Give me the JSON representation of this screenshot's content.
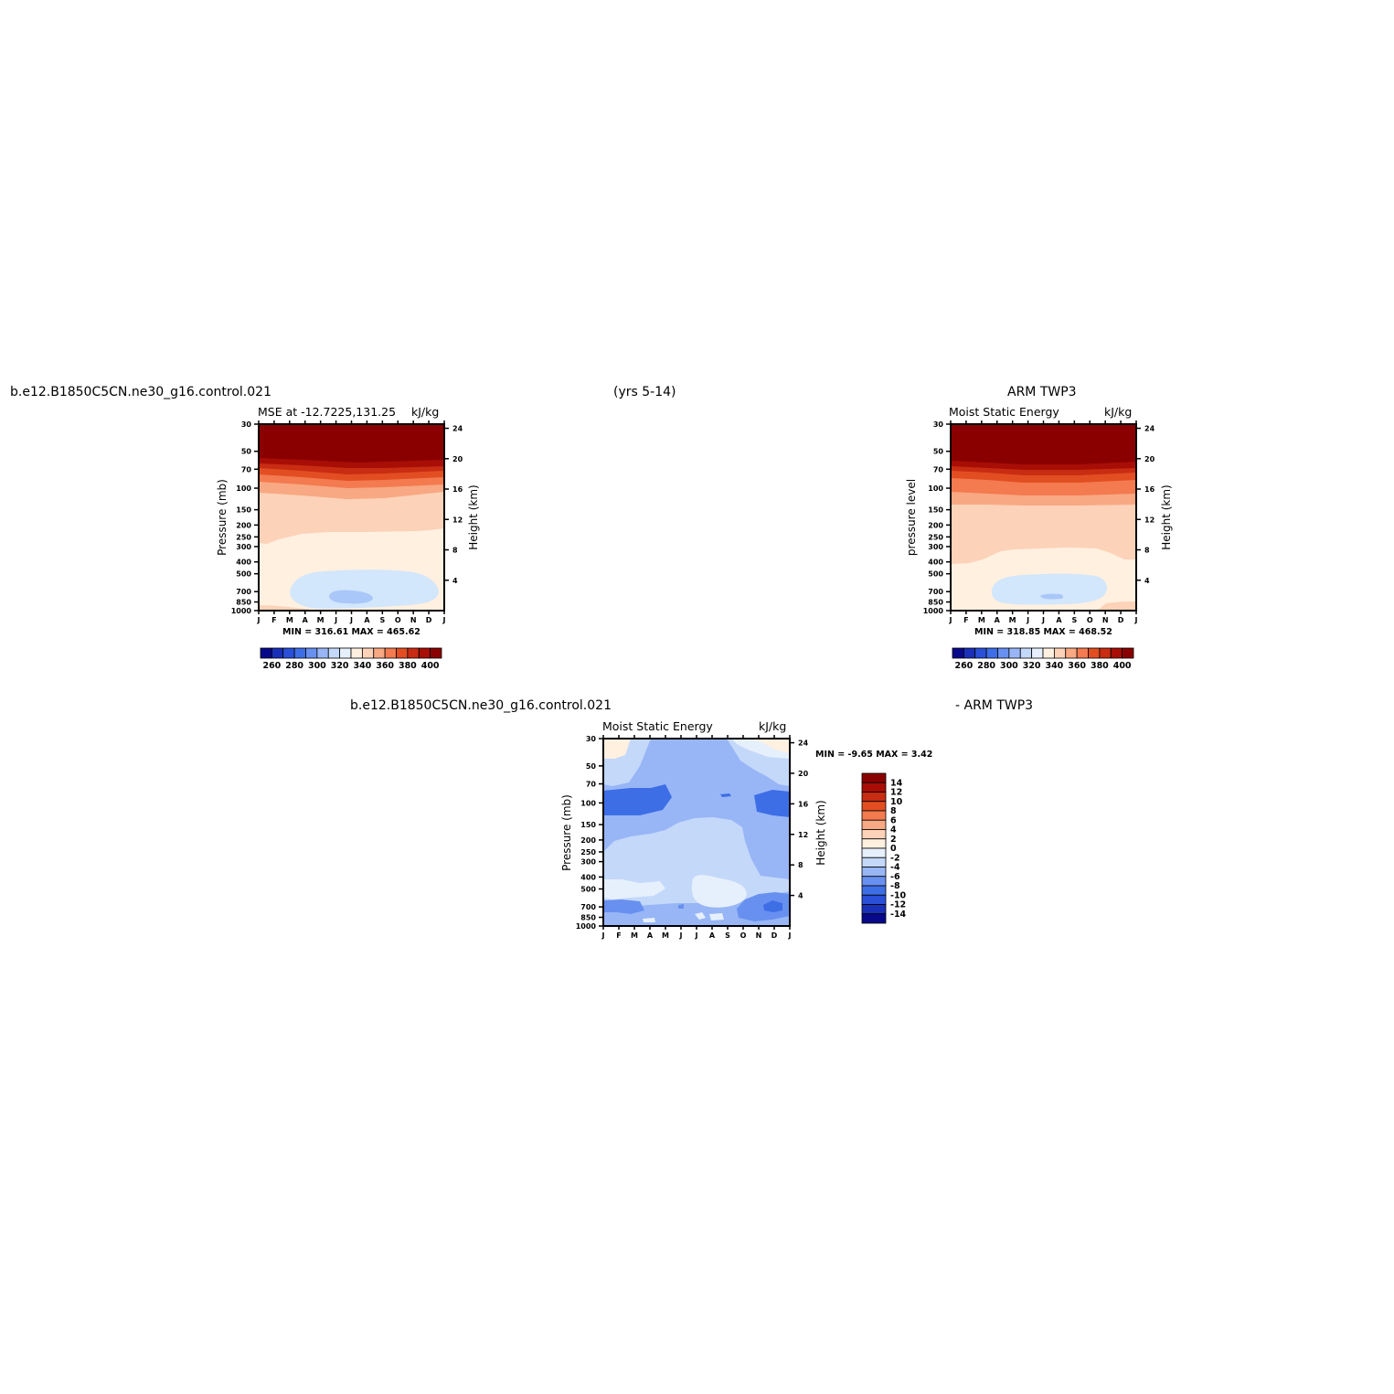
{
  "header": {
    "case_name": "b.e12.B1850C5CN.ne30_g16.control.021",
    "years": "(yrs 5-14)",
    "obs_name": "ARM TWP3",
    "diff_left": "b.e12.B1850C5CN.ne30_g16.control.021",
    "diff_right": "- ARM TWP3"
  },
  "common": {
    "months": [
      "J",
      "F",
      "M",
      "A",
      "M",
      "J",
      "J",
      "A",
      "S",
      "O",
      "N",
      "D",
      "J"
    ],
    "pressure_ticks": [
      "30",
      "50",
      "70",
      "100",
      "150",
      "200",
      "250",
      "300",
      "400",
      "500",
      "700",
      "850",
      "1000"
    ],
    "height_ticks": [
      "24",
      "20",
      "16",
      "12",
      "8",
      "4"
    ],
    "height_axis_label": "Height (km)",
    "units": "kJ/kg"
  },
  "colorbar_horizontal": {
    "colors": [
      "#08088a",
      "#1a30b8",
      "#2a50d8",
      "#3e6ee6",
      "#6890f0",
      "#98b6f6",
      "#c4d8fa",
      "#e6f0fc",
      "#fff0e0",
      "#fcd2b8",
      "#f8a882",
      "#f47a50",
      "#e24e22",
      "#c82c12",
      "#a80e06",
      "#8a0000"
    ],
    "labels": [
      "260",
      "280",
      "300",
      "320",
      "340",
      "360",
      "380",
      "400"
    ],
    "colors_that_matter": {
      "warm_top": "#8a0000",
      "low_blue": "#d2e6fc"
    }
  },
  "colorbar_vertical": {
    "colors": [
      "#8a0000",
      "#a80e06",
      "#c82c12",
      "#e24e22",
      "#f47a50",
      "#f8a882",
      "#fcd2b8",
      "#fff0e0",
      "#e6f0fc",
      "#c4d8fa",
      "#98b6f6",
      "#6890f0",
      "#3e6ee6",
      "#2a50d8",
      "#1a30b8",
      "#08088a"
    ],
    "labels": [
      "14",
      "12",
      "10",
      "8",
      "6",
      "4",
      "2",
      "0",
      "-2",
      "-4",
      "-6",
      "-8",
      "-10",
      "-12",
      "-14"
    ]
  },
  "chart_data": [
    {
      "type": "heatmap",
      "name": "model",
      "left_title": "MSE at -12.7225,131.25",
      "right_title": "kJ/kg",
      "ylabel": "Pressure (mb)",
      "ylabel_right": "Height (km)",
      "x": [
        "J",
        "F",
        "M",
        "A",
        "M",
        "J",
        "J",
        "A",
        "S",
        "O",
        "N",
        "D",
        "J"
      ],
      "y": [
        30,
        50,
        70,
        100,
        150,
        200,
        250,
        300,
        400,
        500,
        700,
        850,
        1000
      ],
      "yscale": "log",
      "stats_text": "MIN = 316.61 MAX = 465.62",
      "min": 316.61,
      "max": 465.62
    },
    {
      "type": "heatmap",
      "name": "obs",
      "left_title": "Moist Static Energy",
      "right_title": "kJ/kg",
      "ylabel": "pressure level",
      "ylabel_right": "Height (km)",
      "x": [
        "J",
        "F",
        "M",
        "A",
        "M",
        "J",
        "J",
        "A",
        "S",
        "O",
        "N",
        "D",
        "J"
      ],
      "y": [
        30,
        50,
        70,
        100,
        150,
        200,
        250,
        300,
        400,
        500,
        700,
        850,
        1000
      ],
      "yscale": "log",
      "stats_text": "MIN = 318.85 MAX = 468.52",
      "min": 318.85,
      "max": 468.52
    },
    {
      "type": "heatmap",
      "name": "difference",
      "left_title": "Moist Static Energy",
      "right_title": "kJ/kg",
      "ylabel": "Pressure (mb)",
      "ylabel_right": "Height (km)",
      "x": [
        "J",
        "F",
        "M",
        "A",
        "M",
        "J",
        "J",
        "A",
        "S",
        "O",
        "N",
        "D",
        "J"
      ],
      "y": [
        30,
        50,
        70,
        100,
        150,
        200,
        250,
        300,
        400,
        500,
        700,
        850,
        1000
      ],
      "yscale": "log",
      "stats_text": "MIN = -9.65 MAX = 3.42",
      "min": -9.65,
      "max": 3.42
    }
  ]
}
